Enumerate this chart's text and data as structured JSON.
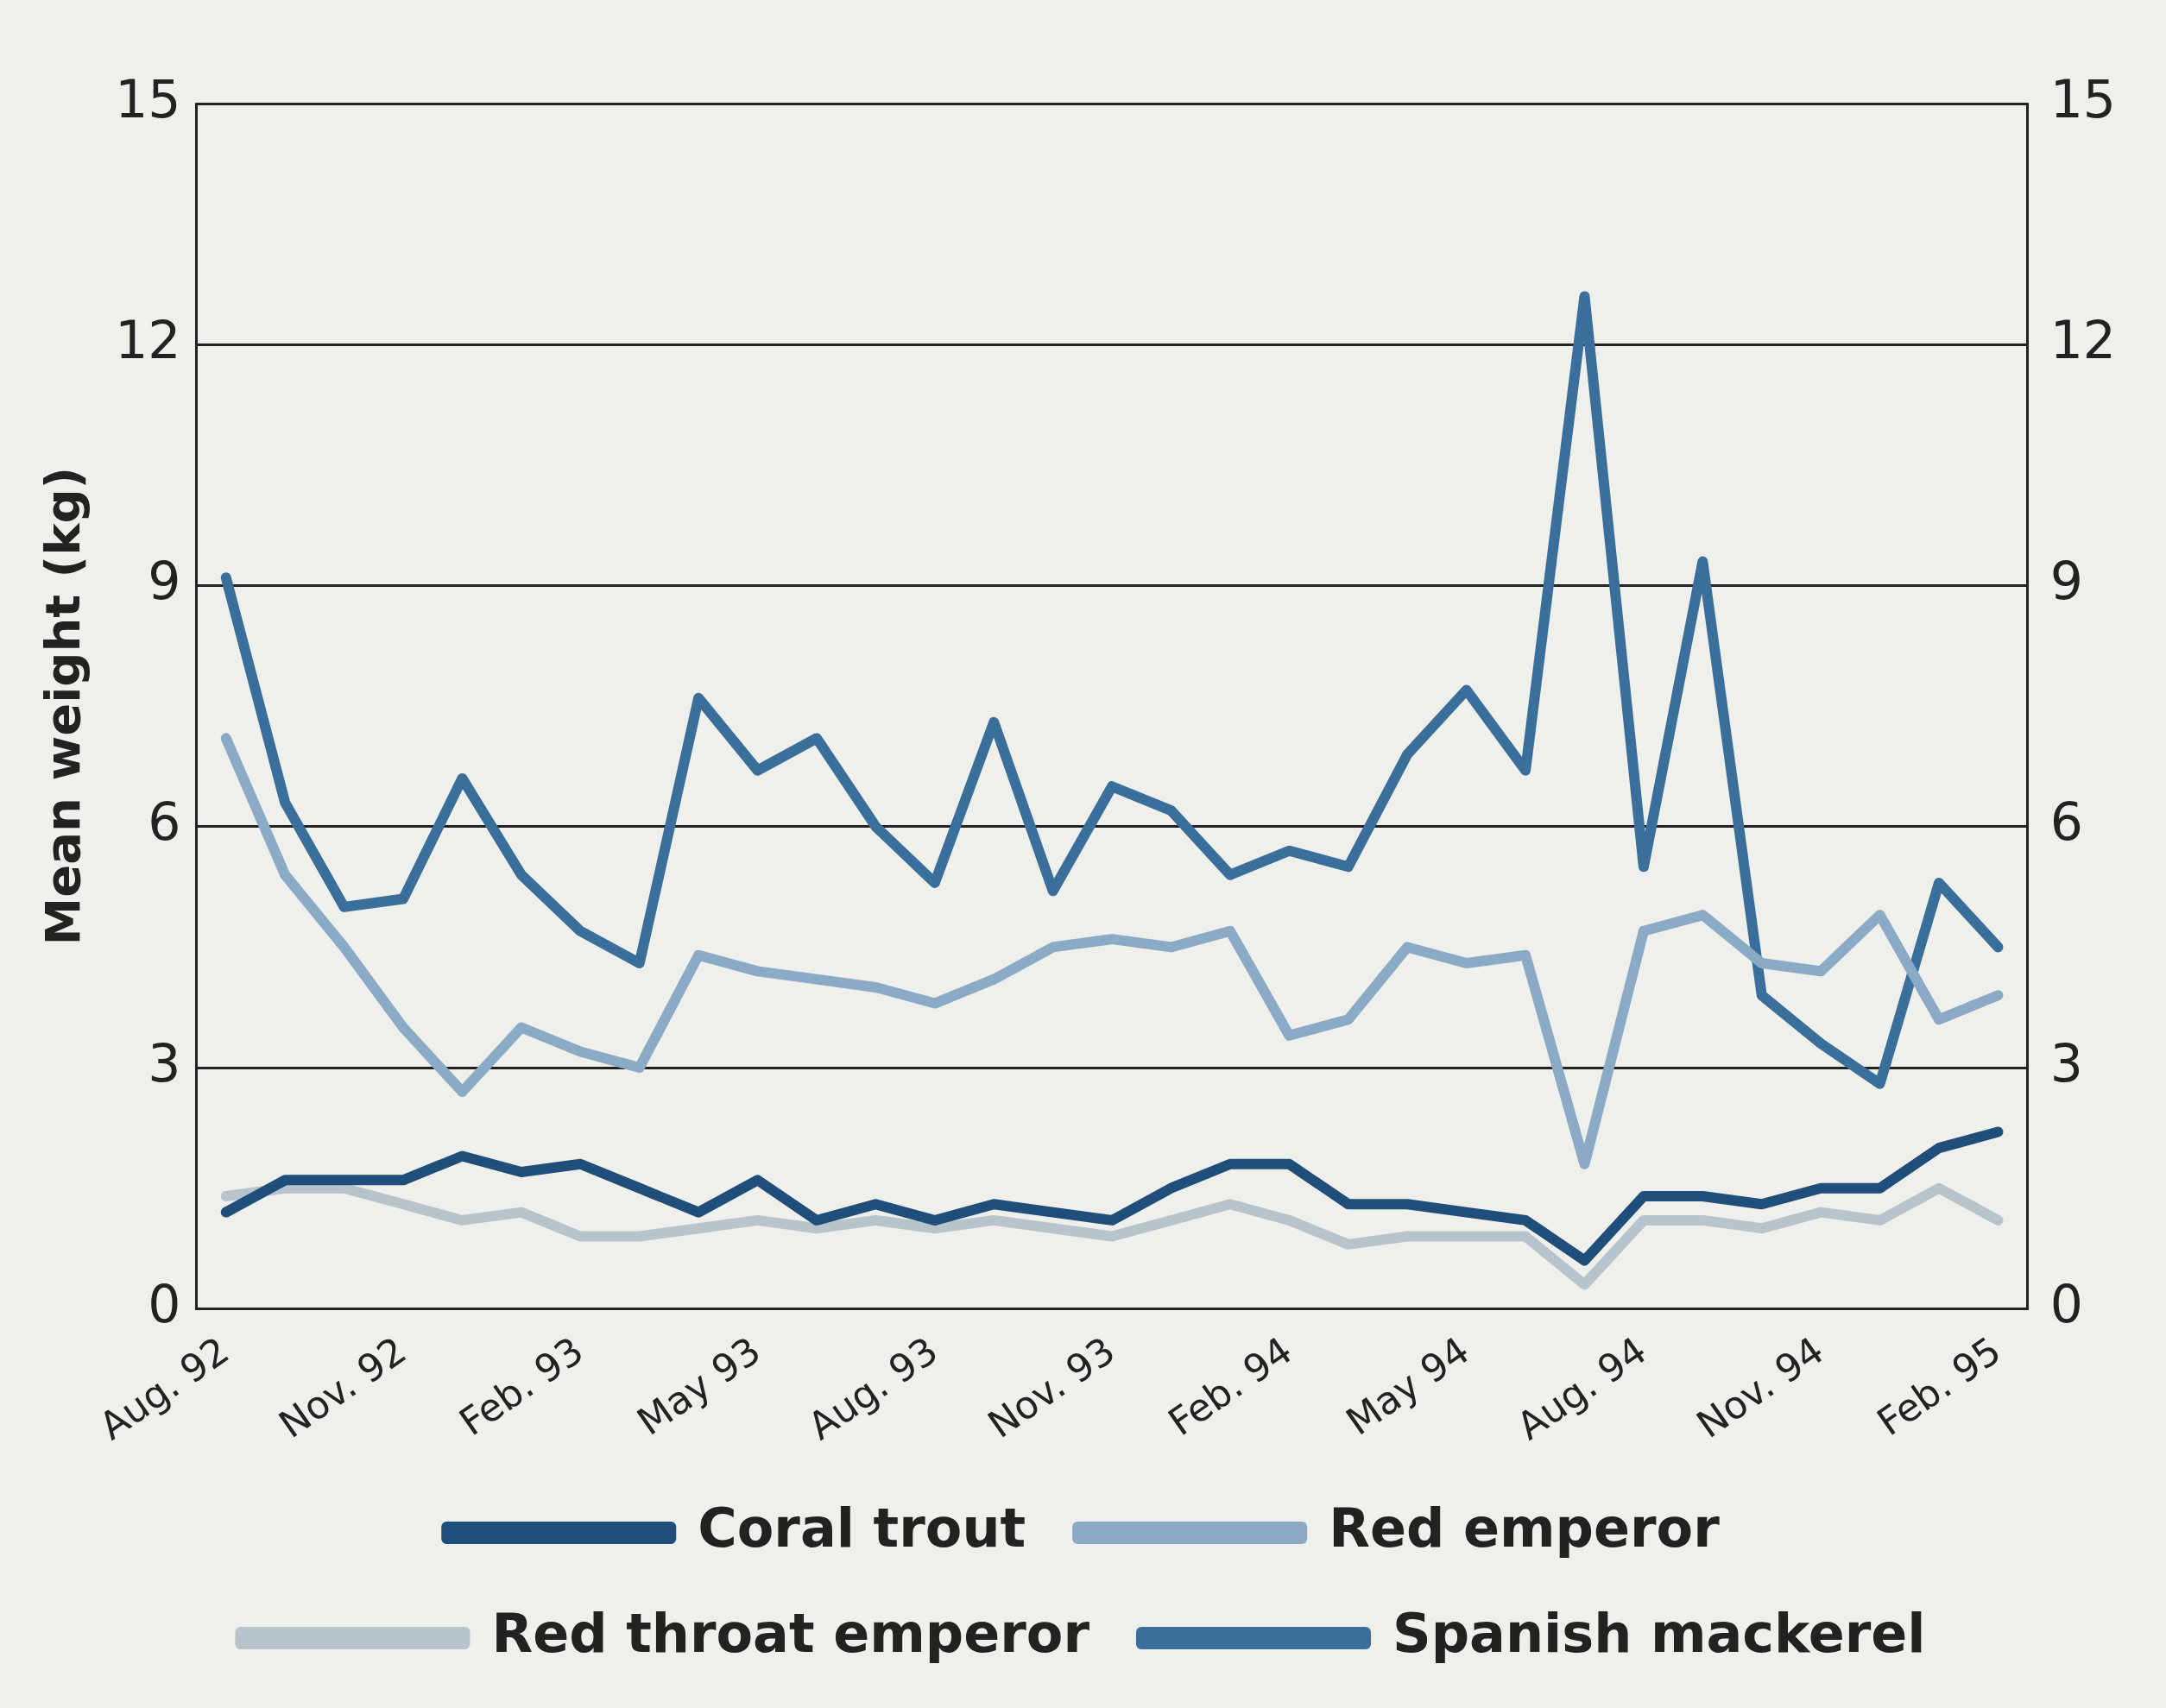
{
  "chart_data": {
    "type": "line",
    "ylabel": "Mean weight (kg)",
    "categories": [
      "Aug. 92",
      null,
      null,
      "Nov. 92",
      null,
      null,
      "Feb. 93",
      null,
      null,
      "May 93",
      null,
      null,
      "Aug. 93",
      null,
      null,
      "Nov. 93",
      null,
      null,
      "Feb. 94",
      null,
      null,
      "May 94",
      null,
      null,
      "Aug. 94",
      null,
      null,
      "Nov. 94",
      null,
      null,
      "Feb. 95"
    ],
    "series": [
      {
        "name": "Coral trout",
        "color": "#1f4e7a",
        "values": [
          1.2,
          1.6,
          1.6,
          1.6,
          1.9,
          1.7,
          1.8,
          1.5,
          1.2,
          1.6,
          1.1,
          1.3,
          1.1,
          1.3,
          1.2,
          1.1,
          1.5,
          1.8,
          1.8,
          1.3,
          1.3,
          1.2,
          1.1,
          0.6,
          1.4,
          1.4,
          1.3,
          1.5,
          1.5,
          2.0,
          2.2
        ]
      },
      {
        "name": "Red emperor",
        "color": "#8aaac6",
        "values": [
          7.1,
          5.4,
          4.5,
          3.5,
          2.7,
          3.5,
          3.2,
          3.0,
          4.4,
          4.2,
          4.1,
          4.0,
          3.8,
          4.1,
          4.5,
          4.6,
          4.5,
          4.7,
          3.4,
          3.6,
          4.5,
          4.3,
          4.4,
          1.8,
          4.7,
          4.9,
          4.3,
          4.2,
          4.9,
          3.6,
          3.9
        ]
      },
      {
        "name": "Red throat emperor",
        "color": "#b8c4cc",
        "values": [
          1.4,
          1.5,
          1.5,
          1.3,
          1.1,
          1.2,
          0.9,
          0.9,
          1.0,
          1.1,
          1.0,
          1.1,
          1.0,
          1.1,
          1.0,
          0.9,
          1.1,
          1.3,
          1.1,
          0.8,
          0.9,
          0.9,
          0.9,
          0.3,
          1.1,
          1.1,
          1.0,
          1.2,
          1.1,
          1.5,
          1.1
        ]
      },
      {
        "name": "Spanish mackerel",
        "color": "#3a6f9c",
        "values": [
          9.1,
          6.3,
          5.0,
          5.1,
          6.6,
          5.4,
          4.7,
          4.3,
          7.6,
          6.7,
          7.1,
          6.0,
          5.3,
          7.3,
          5.2,
          6.5,
          6.2,
          5.4,
          5.7,
          5.5,
          6.9,
          7.7,
          6.7,
          12.6,
          5.5,
          9.3,
          3.9,
          3.3,
          2.8,
          5.3,
          4.5
        ]
      }
    ],
    "ylim": [
      0,
      15
    ],
    "yticks": [
      0,
      3,
      6,
      9,
      12,
      15
    ],
    "y2lim": [
      0,
      15
    ],
    "y2ticks": [
      0,
      3,
      6,
      9,
      12,
      15
    ],
    "grid": "y",
    "legend": "bottom",
    "marker": "none",
    "line_style": "solid"
  }
}
